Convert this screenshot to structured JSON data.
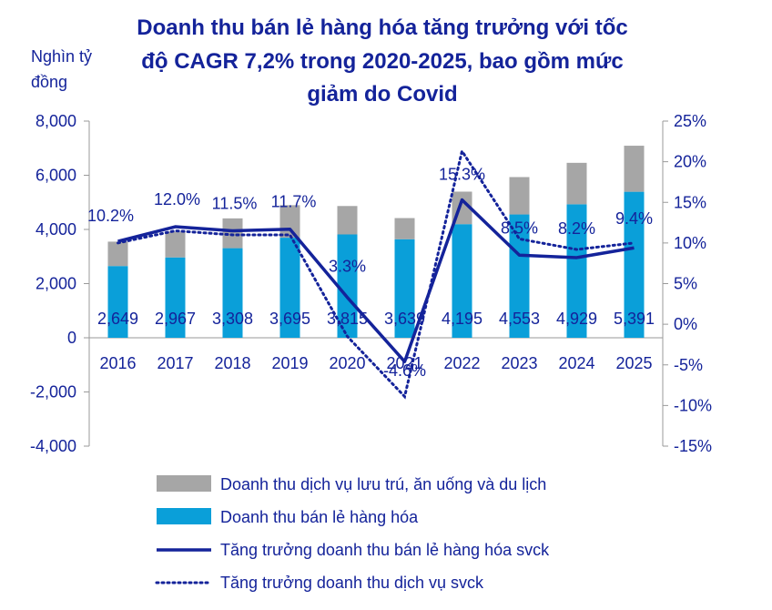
{
  "chart_data": {
    "type": "bar",
    "title_lines": [
      "Doanh thu bán lẻ hàng hóa tăng trưởng với tốc",
      "độ CAGR  7,2% trong 2020-2025, bao gồm mức",
      "giảm do Covid"
    ],
    "y_unit_lines": [
      "Nghìn tỷ",
      "đồng"
    ],
    "categories": [
      "2016",
      "2017",
      "2018",
      "2019",
      "2020",
      "2021",
      "2022",
      "2023",
      "2024",
      "2025"
    ],
    "left_axis": {
      "range": [
        -4000,
        8000
      ],
      "ticks": [
        "8,000",
        "6,000",
        "4,000",
        "2,000",
        "0",
        "-2,000",
        "-4,000"
      ],
      "tick_values": [
        8000,
        6000,
        4000,
        2000,
        0,
        -2000,
        -4000
      ]
    },
    "right_axis": {
      "range": [
        -15,
        25
      ],
      "ticks": [
        "25%",
        "20%",
        "15%",
        "10%",
        "5%",
        "0%",
        "-5%",
        "-10%",
        "-15%"
      ],
      "tick_values": [
        25,
        20,
        15,
        10,
        5,
        0,
        -5,
        -10,
        -15
      ]
    },
    "series": [
      {
        "name": "Doanh thu bán lẻ hàng hóa",
        "kind": "bar-base",
        "color": "#0a9fd9",
        "values": [
          2649,
          2967,
          3308,
          3695,
          3815,
          3639,
          4195,
          4553,
          4929,
          5391
        ],
        "labels": [
          "2,649",
          "2,967",
          "3,308",
          "3,695",
          "3,815",
          "3,639",
          "4,195",
          "4,553",
          "4,929",
          "5,391"
        ]
      },
      {
        "name": "Doanh thu dịch vụ lưu trú, ăn uống và du lịch",
        "kind": "bar-stack",
        "color": "#a6a6a6",
        "values": [
          900,
          950,
          1100,
          1200,
          1050,
          780,
          1200,
          1380,
          1530,
          1700
        ]
      },
      {
        "name": "Tăng trưởng doanh thu bán lẻ hàng hóa svck",
        "kind": "line-solid",
        "color": "#14239a",
        "axis": "right",
        "values": [
          10.2,
          12.0,
          11.5,
          11.7,
          3.3,
          -4.6,
          15.3,
          8.5,
          8.2,
          9.4
        ],
        "labels": [
          "10.2%",
          "12.0%",
          "11.5%",
          "11.7%",
          "3.3%",
          "-4.6%",
          "15.3%",
          "8.5%",
          "8.2%",
          "9.4%"
        ]
      },
      {
        "name": "Tăng trưởng doanh thu dịch vụ svck",
        "kind": "line-dotted",
        "color": "#14239a",
        "axis": "right",
        "values": [
          10.0,
          11.5,
          11.0,
          11.0,
          -1.5,
          -8.9,
          21.3,
          10.5,
          9.2,
          10.0
        ]
      }
    ],
    "legend_order": [
      1,
      0,
      2,
      3
    ],
    "legend_position": "bottom",
    "grid": false
  }
}
